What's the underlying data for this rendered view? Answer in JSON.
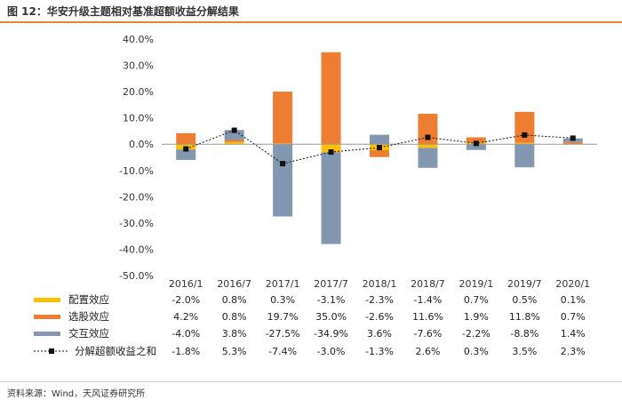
{
  "title": "图 12：华安升级主题相对基准超额收益分解结果",
  "source": "资料来源：Wind，天风证券研究所",
  "colors": {
    "alloc": "#FFC000",
    "select": "#ED7D31",
    "interact": "#8497B0",
    "total": "#111111",
    "accent": "#E8842F"
  },
  "chart_data": {
    "type": "bar",
    "stacked": true,
    "categories": [
      "2016/1",
      "2016/7",
      "2017/1",
      "2017/7",
      "2018/1",
      "2018/7",
      "2019/1",
      "2019/7",
      "2020/1"
    ],
    "series": [
      {
        "key": "alloc",
        "name": "配置效应",
        "kind": "bar",
        "values": [
          -2.0,
          0.8,
          0.3,
          -3.1,
          -2.3,
          -1.4,
          0.7,
          0.5,
          0.1
        ],
        "labels": [
          "-2.0%",
          "0.8%",
          "0.3%",
          "-3.1%",
          "-2.3%",
          "-1.4%",
          "0.7%",
          "0.5%",
          "0.1%"
        ]
      },
      {
        "key": "select",
        "name": "选股效应",
        "kind": "bar",
        "values": [
          4.2,
          0.8,
          19.7,
          35.0,
          -2.6,
          11.6,
          1.9,
          11.8,
          0.7
        ],
        "labels": [
          "4.2%",
          "0.8%",
          "19.7%",
          "35.0%",
          "-2.6%",
          "11.6%",
          "1.9%",
          "11.8%",
          "0.7%"
        ]
      },
      {
        "key": "interact",
        "name": "交互效应",
        "kind": "bar",
        "values": [
          -4.0,
          3.8,
          -27.5,
          -34.9,
          3.6,
          -7.6,
          -2.2,
          -8.8,
          1.4
        ],
        "labels": [
          "-4.0%",
          "3.8%",
          "-27.5%",
          "-34.9%",
          "3.6%",
          "-7.6%",
          "-2.2%",
          "-8.8%",
          "1.4%"
        ]
      },
      {
        "key": "total",
        "name": "分解超额收益之和",
        "kind": "line",
        "values": [
          -1.8,
          5.3,
          -7.4,
          -3.0,
          -1.3,
          2.6,
          0.3,
          3.5,
          2.3
        ],
        "labels": [
          "-1.8%",
          "5.3%",
          "-7.4%",
          "-3.0%",
          "-1.3%",
          "2.6%",
          "0.3%",
          "3.5%",
          "2.3%"
        ]
      }
    ],
    "ylim": [
      -50,
      40
    ],
    "yticks": [
      40,
      30,
      20,
      10,
      0,
      -10,
      -20,
      -30,
      -40,
      -50
    ],
    "ytick_labels": [
      "40.0%",
      "30.0%",
      "20.0%",
      "10.0%",
      "0.0%",
      "-10.0%",
      "-20.0%",
      "-30.0%",
      "-40.0%",
      "-50.0%"
    ],
    "xlabel": "",
    "ylabel": "",
    "grid": false,
    "legend": "data table below chart"
  }
}
